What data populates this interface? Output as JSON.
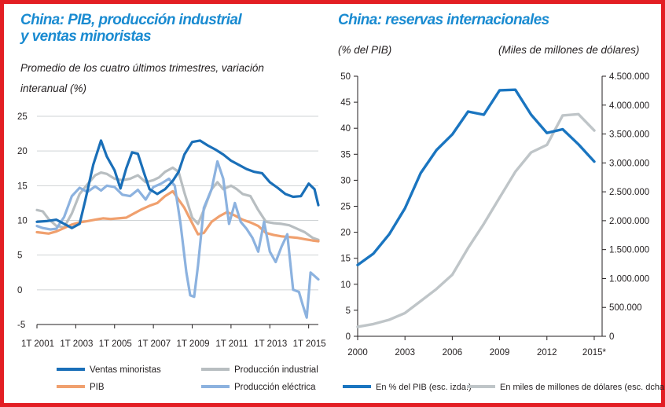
{
  "colors": {
    "frame": "#e31e24",
    "title": "#1a8bd1",
    "ventas": "#1a6fb8",
    "produccion_industrial": "#b8bec1",
    "pib": "#f0a06e",
    "electrica": "#8cb2df",
    "reservas_pib": "#1a75c0",
    "reservas_usd": "#bfc5c8",
    "grid": "#cfd3d5",
    "axis": "#231f20"
  },
  "left_panel": {
    "title_line1": "China: PIB, producción industrial",
    "title_line2": "y ventas minoristas",
    "subtitle_line1": "Promedio de los cuatro últimos trimestres, variación",
    "subtitle_line2": "interanual (%)"
  },
  "right_panel": {
    "title": "China: reservas internacionales",
    "left_unit": "(% del PIB)",
    "right_unit": "(Miles de millones de dólares)"
  },
  "chart_data": [
    {
      "type": "line",
      "title": "China: PIB, producción industrial y ventas minoristas",
      "subtitle": "Promedio de los cuatro últimos trimestres, variación interanual (%)",
      "ylim": [
        -5,
        25
      ],
      "yticks": [
        25,
        20,
        15,
        10,
        5,
        0,
        -5
      ],
      "xlim": [
        2001,
        2015.5
      ],
      "xticks": [
        {
          "x": 2001,
          "label": "1T 2001"
        },
        {
          "x": 2003,
          "label": "1T 2003"
        },
        {
          "x": 2005,
          "label": "1T 2005"
        },
        {
          "x": 2007,
          "label": "1T 2007"
        },
        {
          "x": 2009,
          "label": "1T 2009"
        },
        {
          "x": 2011,
          "label": "1T 2011"
        },
        {
          "x": 2013,
          "label": "1T 2013"
        },
        {
          "x": 2015,
          "label": "1T 2015"
        }
      ],
      "grid": true,
      "series": [
        {
          "name": "Ventas minoristas",
          "color": "#1a6fb8",
          "x": [
            2001,
            2001.5,
            2002,
            2002.4,
            2002.8,
            2003.2,
            2003.5,
            2003.9,
            2004.3,
            2004.6,
            2005,
            2005.3,
            2005.6,
            2005.9,
            2006.2,
            2006.5,
            2006.8,
            2007.2,
            2007.6,
            2008,
            2008.3,
            2008.6,
            2009,
            2009.4,
            2009.8,
            2010.2,
            2010.6,
            2011,
            2011.4,
            2011.8,
            2012.2,
            2012.6,
            2013,
            2013.4,
            2013.8,
            2014.2,
            2014.6,
            2015,
            2015.3,
            2015.5
          ],
          "values": [
            9.8,
            9.9,
            10.1,
            9.5,
            8.9,
            9.5,
            13,
            18,
            21.5,
            19.2,
            17.2,
            14.6,
            17.5,
            19.8,
            19.6,
            17,
            14.5,
            13.8,
            14.5,
            15.7,
            17,
            19.5,
            21.3,
            21.5,
            20.8,
            20.2,
            19.5,
            18.6,
            18,
            17.4,
            17,
            16.8,
            15.5,
            14.7,
            13.8,
            13.4,
            13.5,
            15.3,
            14.5,
            12.2
          ]
        },
        {
          "name": "Producción industrial",
          "color": "#b8bec1",
          "x": [
            2001,
            2001.3,
            2001.6,
            2002,
            2002.4,
            2002.8,
            2003.2,
            2003.6,
            2004,
            2004.3,
            2004.6,
            2005,
            2005.4,
            2005.8,
            2006.2,
            2006.6,
            2007,
            2007.3,
            2007.6,
            2008,
            2008.3,
            2008.6,
            2009,
            2009.3,
            2009.6,
            2010,
            2010.3,
            2010.6,
            2011,
            2011.3,
            2011.6,
            2012,
            2012.4,
            2012.8,
            2013.2,
            2013.6,
            2014,
            2014.4,
            2014.8,
            2015.2,
            2015.5
          ],
          "values": [
            11.5,
            11.3,
            10.2,
            9.2,
            9,
            11,
            13.8,
            15.2,
            16.5,
            16.9,
            16.7,
            16,
            15.8,
            16,
            16.5,
            15.5,
            15.8,
            16.2,
            17,
            17.6,
            17,
            14,
            10.4,
            9.5,
            11.5,
            14.5,
            15.5,
            14.5,
            15,
            14.5,
            13.8,
            13.5,
            11.5,
            9.8,
            9.6,
            9.5,
            9.3,
            8.8,
            8.3,
            7.5,
            7.2
          ]
        },
        {
          "name": "PIB",
          "color": "#f0a06e",
          "x": [
            2001,
            2001.3,
            2001.6,
            2002,
            2002.4,
            2002.8,
            2003.2,
            2003.6,
            2004,
            2004.4,
            2004.8,
            2005.2,
            2005.6,
            2006,
            2006.4,
            2006.8,
            2007.2,
            2007.6,
            2008,
            2008.3,
            2008.6,
            2009,
            2009.3,
            2009.6,
            2010,
            2010.4,
            2010.8,
            2011.2,
            2011.6,
            2012,
            2012.4,
            2012.8,
            2013.2,
            2013.6,
            2014,
            2014.4,
            2014.8,
            2015.2,
            2015.5
          ],
          "values": [
            8.3,
            8.2,
            8.1,
            8.4,
            8.9,
            9.4,
            9.7,
            9.9,
            10.1,
            10.3,
            10.2,
            10.3,
            10.4,
            11,
            11.6,
            12.1,
            12.5,
            13.5,
            14.2,
            13,
            11.8,
            9.6,
            8,
            8.2,
            9.8,
            10.6,
            11.2,
            10.7,
            10.1,
            9.7,
            9.2,
            8.2,
            7.9,
            7.7,
            7.6,
            7.5,
            7.3,
            7.1,
            7
          ]
        },
        {
          "name": "Producción eléctrica",
          "color": "#8cb2df",
          "x": [
            2001,
            2001.3,
            2001.7,
            2002,
            2002.4,
            2002.8,
            2003.2,
            2003.6,
            2004,
            2004.3,
            2004.6,
            2005,
            2005.4,
            2005.8,
            2006.2,
            2006.6,
            2007,
            2007.4,
            2007.8,
            2008.1,
            2008.4,
            2008.7,
            2008.9,
            2009.1,
            2009.3,
            2009.6,
            2010,
            2010.3,
            2010.6,
            2010.9,
            2011.2,
            2011.5,
            2011.8,
            2012.1,
            2012.4,
            2012.7,
            2013,
            2013.3,
            2013.6,
            2013.9,
            2014.2,
            2014.5,
            2014.7,
            2014.9,
            2015.1,
            2015.3,
            2015.5
          ],
          "values": [
            9.2,
            8.9,
            8.7,
            8.8,
            10.5,
            13.5,
            14.7,
            14.1,
            14.9,
            14.3,
            15,
            14.8,
            13.7,
            13.5,
            14.4,
            13,
            14.8,
            15.3,
            16,
            15,
            9.5,
            2.5,
            -0.8,
            -1,
            3.5,
            11.8,
            14.5,
            18.5,
            16,
            9.5,
            12.5,
            9.8,
            8.8,
            7.5,
            5.5,
            9.8,
            5.5,
            4,
            6.2,
            8,
            0,
            -0.3,
            -2.2,
            -4,
            2.5,
            2,
            1.5
          ]
        }
      ]
    },
    {
      "type": "line",
      "title": "China: reservas internacionales",
      "ylim": [
        0,
        50
      ],
      "yticks": [
        50,
        45,
        40,
        35,
        30,
        25,
        20,
        15,
        10,
        5,
        0
      ],
      "ylabel": "(% del PIB)",
      "y2lim": [
        0,
        4500000
      ],
      "y2ticks": [
        "4.500.000",
        "4.000.000",
        "3.500.000",
        "3.000.000",
        "2.500.000",
        "2.000.000",
        "1.500.000",
        "1.000.000",
        "500.000",
        "0"
      ],
      "y2label": "(Miles de millones de dólares)",
      "xlim": [
        2000,
        2015.5
      ],
      "xticks": [
        {
          "x": 2000,
          "label": "2000"
        },
        {
          "x": 2003,
          "label": "2003"
        },
        {
          "x": 2006,
          "label": "2006"
        },
        {
          "x": 2009,
          "label": "2009"
        },
        {
          "x": 2012,
          "label": "2012"
        },
        {
          "x": 2015,
          "label": "2015*"
        }
      ],
      "grid": false,
      "series": [
        {
          "name": "En % del PIB (esc. izda.)",
          "axis": "left",
          "color": "#1a75c0",
          "x": [
            2000,
            2001,
            2002,
            2003,
            2004,
            2005,
            2006,
            2007,
            2008,
            2009,
            2010,
            2011,
            2012,
            2013,
            2014,
            2015
          ],
          "values": [
            13.7,
            15.9,
            19.6,
            24.6,
            31.4,
            35.8,
            38.8,
            43.2,
            42.6,
            47.3,
            47.4,
            42.6,
            39.1,
            39.8,
            36.9,
            33.6
          ]
        },
        {
          "name": "En miles de millones de dólares (esc. dcha.)",
          "axis": "right",
          "color": "#bfc5c8",
          "x": [
            2000,
            2001,
            2002,
            2003,
            2004,
            2005,
            2006,
            2007,
            2008,
            2009,
            2010,
            2011,
            2012,
            2013,
            2014,
            2015
          ],
          "values": [
            165000,
            212000,
            286000,
            403000,
            610000,
            819000,
            1066000,
            1528000,
            1946000,
            2399000,
            2847000,
            3181000,
            3312000,
            3821000,
            3843000,
            3560000
          ]
        }
      ]
    }
  ]
}
